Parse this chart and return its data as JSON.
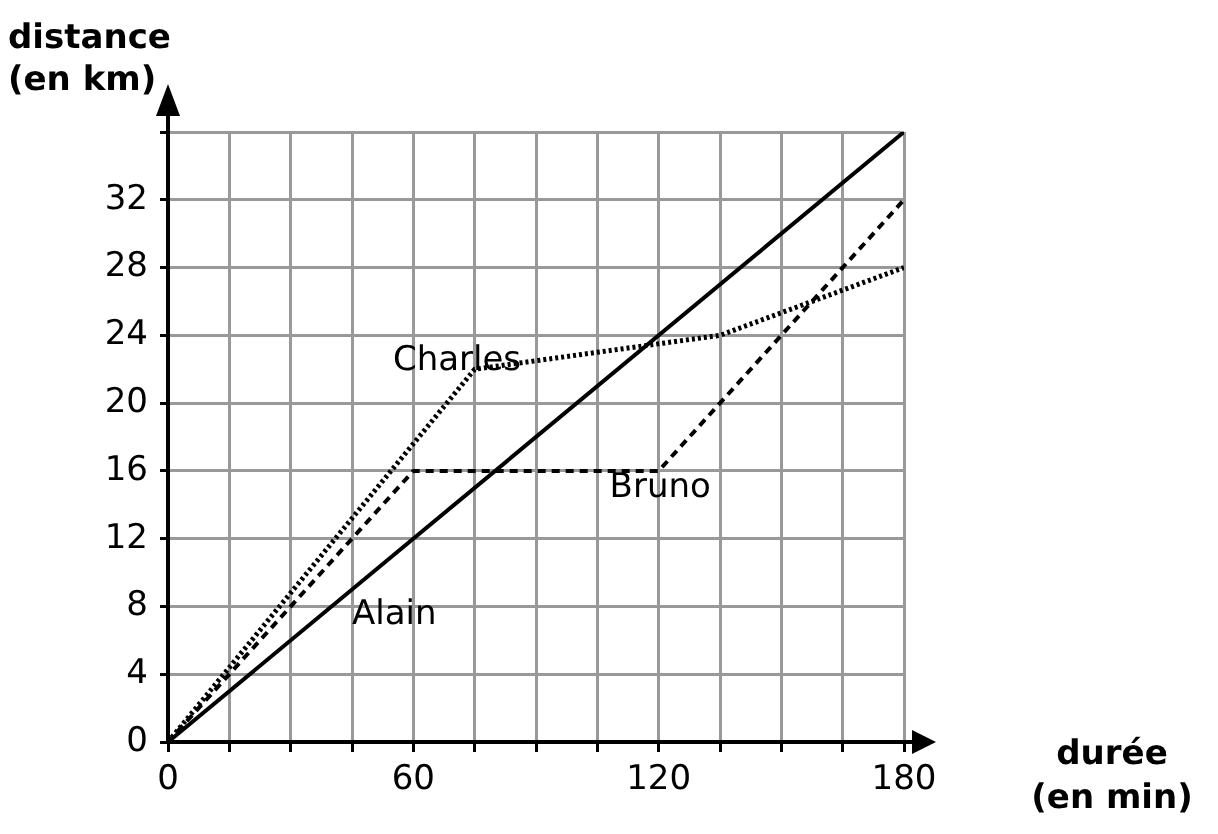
{
  "chart_data": {
    "type": "line",
    "xlabel": "durée (en min)",
    "ylabel": "distance (en km)",
    "xlim": [
      0,
      180
    ],
    "ylim": [
      0,
      36
    ],
    "xticks": [
      0,
      {
        "value": 15,
        "label": null
      },
      {
        "value": 30,
        "label": null
      },
      {
        "value": 45,
        "label": null
      },
      60,
      {
        "value": 75,
        "label": null
      },
      {
        "value": 90,
        "label": null
      },
      {
        "value": 105,
        "label": null
      },
      120,
      {
        "value": 135,
        "label": null
      },
      {
        "value": 150,
        "label": null
      },
      {
        "value": 165,
        "label": null
      },
      180
    ],
    "yticks": [
      0,
      4,
      8,
      12,
      16,
      20,
      24,
      28,
      32,
      {
        "value": 36,
        "label": null
      }
    ],
    "grid": true,
    "legend": false,
    "marker": "none",
    "series": [
      {
        "name": "Alain",
        "color": "#000000",
        "line_style": "solid",
        "x": [
          0,
          180
        ],
        "values": [
          0,
          36
        ]
      },
      {
        "name": "Bruno",
        "color": "#000000",
        "line_style": "dashed",
        "x": [
          0,
          60,
          120,
          180
        ],
        "values": [
          0,
          16,
          16,
          32
        ]
      },
      {
        "name": "Charles",
        "color": "#000000",
        "line_style": "dotted",
        "x": [
          0,
          75,
          135,
          180
        ],
        "values": [
          0,
          22,
          24,
          28
        ]
      }
    ]
  }
}
